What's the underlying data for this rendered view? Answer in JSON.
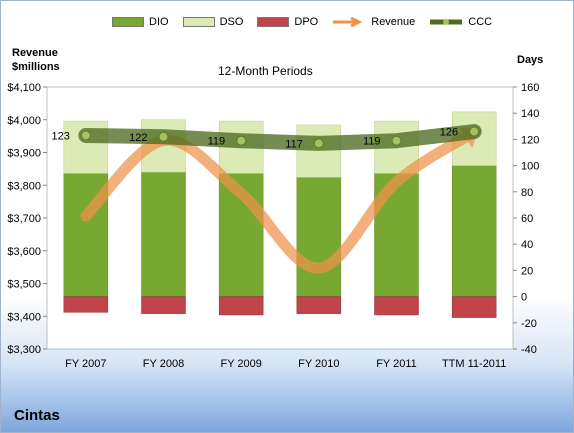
{
  "company": "Cintas",
  "left_axis_label": "Revenue\n$millions",
  "right_axis_label": "Days",
  "legend": [
    {
      "name": "DIO",
      "type": "bar",
      "color": "#76a832"
    },
    {
      "name": "DSO",
      "type": "bar",
      "color": "#dceab5"
    },
    {
      "name": "DPO",
      "type": "bar",
      "color": "#c0444a"
    },
    {
      "name": "Revenue",
      "type": "line",
      "color": "#f0914a"
    },
    {
      "name": "CCC",
      "type": "line",
      "color": "#4e6b22"
    }
  ],
  "chart_data": {
    "type": "bar",
    "title": "12-Month Periods",
    "categories": [
      "FY 2007",
      "FY 2008",
      "FY 2009",
      "FY 2010",
      "FY 2011",
      "TTM 11-2011"
    ],
    "left_axis": {
      "min": 3300,
      "max": 4100,
      "step": 100,
      "format": "currency"
    },
    "right_axis": {
      "min": -40,
      "max": 160,
      "step": 20
    },
    "series": [
      {
        "name": "DIO",
        "axis": "right",
        "values": [
          94,
          95,
          94,
          91,
          94,
          100
        ]
      },
      {
        "name": "DSO",
        "axis": "right",
        "values": [
          40,
          40,
          40,
          40,
          40,
          41
        ]
      },
      {
        "name": "DPO",
        "axis": "right",
        "values": [
          -12,
          -13,
          -14,
          -13,
          -14,
          -16
        ]
      },
      {
        "name": "Revenue",
        "axis": "left",
        "smooth": true,
        "values": [
          3706,
          3937,
          3775,
          3547,
          3810,
          3962
        ]
      },
      {
        "name": "CCC",
        "axis": "right",
        "values": [
          123,
          122,
          119,
          117,
          119,
          126
        ],
        "data_labels": [
          "123",
          "122",
          "119",
          "117",
          "119",
          "126"
        ]
      }
    ],
    "grid": false
  }
}
